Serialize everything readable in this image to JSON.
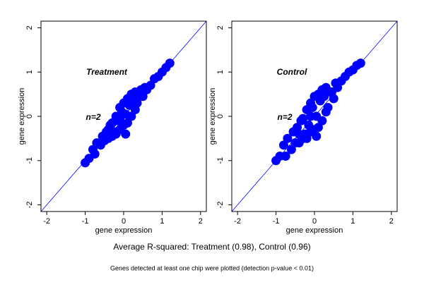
{
  "chart_data": [
    {
      "type": "scatter",
      "xlabel": "gene expression",
      "ylabel": "gene expression",
      "annotations": [
        "Treatment",
        "n=2"
      ],
      "xlim": [
        -2.15,
        2.15
      ],
      "ylim": [
        -2.15,
        2.15
      ],
      "xticks": [
        -2,
        -1,
        0,
        1,
        2
      ],
      "yticks": [
        -2,
        -1,
        0,
        1,
        2
      ],
      "series": [
        {
          "color": "#0000ff",
          "x": [
            -1.0,
            -0.9,
            -0.8,
            -0.75,
            -0.7,
            -0.6,
            -0.55,
            -0.5,
            -0.45,
            -0.4,
            -0.35,
            -0.3,
            -0.3,
            -0.25,
            -0.2,
            -0.2,
            -0.15,
            -0.1,
            -0.1,
            -0.05,
            0,
            0,
            0.05,
            0.1,
            0.1,
            0.15,
            0.2,
            0.2,
            0.25,
            0.3,
            0.35,
            0.4,
            0.45,
            0.5,
            0.55,
            0.6,
            0.7,
            0.8,
            0.9,
            1.0,
            1.1,
            1.2,
            -0.4,
            0.3,
            -0.1,
            0.05
          ],
          "values": [
            -1.05,
            -0.95,
            -0.75,
            -0.85,
            -0.6,
            -0.65,
            -0.45,
            -0.55,
            -0.35,
            -0.5,
            -0.2,
            -0.45,
            -0.15,
            -0.35,
            0.0,
            -0.4,
            -0.1,
            0.2,
            -0.3,
            0.1,
            0.3,
            -0.2,
            0.05,
            0.4,
            -0.15,
            0.25,
            0.5,
            0.0,
            0.35,
            0.55,
            0.3,
            0.5,
            0.6,
            0.45,
            0.65,
            0.6,
            0.7,
            0.85,
            0.9,
            1.0,
            1.1,
            1.2,
            -0.3,
            0.15,
            -0.05,
            -0.4
          ]
        }
      ]
    },
    {
      "type": "scatter",
      "xlabel": "gene expression",
      "ylabel": "gene expression",
      "annotations": [
        "Control",
        "n=2"
      ],
      "xlim": [
        -2.15,
        2.15
      ],
      "ylim": [
        -2.15,
        2.15
      ],
      "xticks": [
        -2,
        -1,
        0,
        1,
        2
      ],
      "yticks": [
        -2,
        -1,
        0,
        1,
        2
      ],
      "series": [
        {
          "color": "#0000ff",
          "x": [
            -1.0,
            -0.9,
            -0.8,
            -0.75,
            -0.7,
            -0.6,
            -0.55,
            -0.5,
            -0.45,
            -0.4,
            -0.35,
            -0.3,
            -0.3,
            -0.25,
            -0.2,
            -0.2,
            -0.15,
            -0.1,
            -0.1,
            -0.05,
            0,
            0,
            0.05,
            0.1,
            0.1,
            0.15,
            0.2,
            0.2,
            0.25,
            0.3,
            0.35,
            0.4,
            0.45,
            0.5,
            0.55,
            0.6,
            0.7,
            0.8,
            0.9,
            1.0,
            1.1,
            1.2,
            -0.4,
            0.3,
            -0.1,
            0.05
          ],
          "values": [
            -1.0,
            -0.9,
            -0.65,
            -0.9,
            -0.5,
            -0.75,
            -0.35,
            -0.6,
            -0.25,
            -0.6,
            -0.1,
            -0.5,
            -0.05,
            -0.4,
            0.15,
            -0.5,
            -0.2,
            0.3,
            -0.35,
            0.2,
            0.45,
            -0.3,
            0.0,
            0.5,
            -0.25,
            0.35,
            0.6,
            -0.1,
            0.45,
            0.65,
            0.2,
            0.55,
            0.55,
            0.4,
            0.75,
            0.65,
            0.8,
            0.9,
            1.0,
            1.05,
            1.15,
            1.2,
            -0.4,
            0.1,
            0.0,
            -0.45
          ]
        }
      ]
    }
  ],
  "caption": "Average R-squared: Treatment (0.98), Control (0.96)",
  "note": "Genes detected at least one chip were plotted (detection p-value < 0.01)"
}
